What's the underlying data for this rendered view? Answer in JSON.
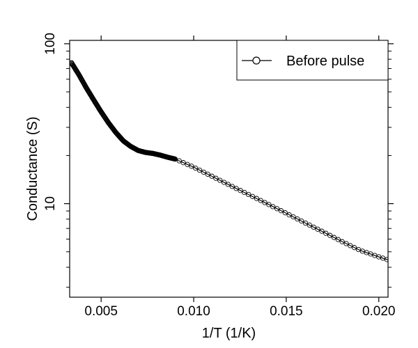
{
  "chart_data": {
    "type": "line",
    "title": "",
    "xlabel": "1/T (1/K)",
    "ylabel": "Conductance (S)",
    "x_ticks": [
      0.005,
      0.01,
      0.015,
      0.02
    ],
    "x_tick_labels": [
      "0.005",
      "0.010",
      "0.015",
      "0.020"
    ],
    "y_ticks": [
      10,
      100
    ],
    "y_tick_labels": [
      "10",
      "100"
    ],
    "xlim": [
      0.0033,
      0.0205
    ],
    "ylim": [
      2.6,
      105
    ],
    "y_scale": "log",
    "grid": false,
    "legend_position": "top-right",
    "legend": [
      {
        "label": "Before pulse",
        "marker": "open-circle"
      }
    ],
    "series": [
      {
        "name": "Before pulse",
        "marker": "open-circle",
        "color": "#000000",
        "x": [
          0.0034,
          0.0038,
          0.0042,
          0.0046,
          0.005,
          0.0054,
          0.0058,
          0.0062,
          0.0066,
          0.007,
          0.0074,
          0.0078,
          0.0082,
          0.0086,
          0.009,
          0.01,
          0.011,
          0.012,
          0.013,
          0.014,
          0.015,
          0.016,
          0.017,
          0.018,
          0.019,
          0.02,
          0.0205
        ],
        "y": [
          76,
          64,
          53,
          44.5,
          37.5,
          32,
          27.8,
          24.7,
          22.8,
          21.5,
          20.9,
          20.6,
          20.1,
          19.5,
          19.0,
          16.9,
          14.8,
          12.95,
          11.35,
          9.95,
          8.7,
          7.6,
          6.65,
          5.8,
          5.1,
          4.65,
          4.45
        ]
      }
    ]
  }
}
